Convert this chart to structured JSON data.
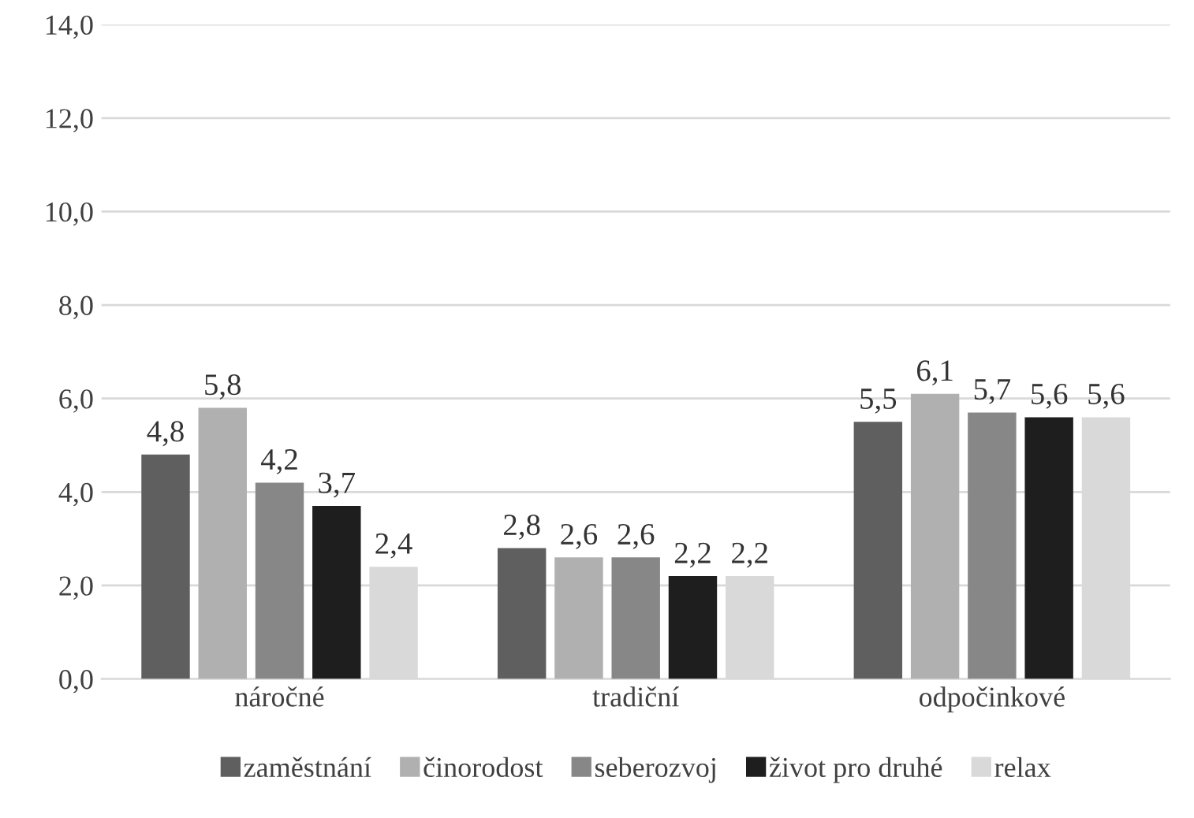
{
  "chart_data": {
    "type": "bar",
    "categories": [
      "náročné",
      "tradiční",
      "odpočinkové"
    ],
    "series": [
      {
        "name": "zaměstnání",
        "color": "#5f5f5f",
        "values": [
          4.8,
          2.8,
          5.5
        ],
        "value_labels": [
          "4,8",
          "2,8",
          "5,5"
        ]
      },
      {
        "name": "činorodost",
        "color": "#b0b0b0",
        "values": [
          5.8,
          2.6,
          6.1
        ],
        "value_labels": [
          "5,8",
          "2,6",
          "6,1"
        ]
      },
      {
        "name": "seberozvoj",
        "color": "#878787",
        "values": [
          4.2,
          2.6,
          5.7
        ],
        "value_labels": [
          "4,2",
          "2,6",
          "5,7"
        ]
      },
      {
        "name": "život pro druhé",
        "color": "#1e1e1e",
        "values": [
          3.7,
          2.2,
          5.6
        ],
        "value_labels": [
          "3,7",
          "2,2",
          "5,6"
        ]
      },
      {
        "name": "relax",
        "color": "#d9d9d9",
        "values": [
          2.4,
          2.2,
          5.6
        ],
        "value_labels": [
          "2,4",
          "2,2",
          "5,6"
        ]
      }
    ],
    "ylim": [
      0,
      14
    ],
    "yticks": [
      {
        "value": 0,
        "label": "0,0"
      },
      {
        "value": 2,
        "label": "2,0"
      },
      {
        "value": 4,
        "label": "4,0"
      },
      {
        "value": 6,
        "label": "6,0"
      },
      {
        "value": 8,
        "label": "8,0"
      },
      {
        "value": 10,
        "label": "10,0"
      },
      {
        "value": 12,
        "label": "12,0"
      },
      {
        "value": 14,
        "label": "14,0"
      }
    ],
    "grid": "y",
    "legend": "bottom"
  }
}
